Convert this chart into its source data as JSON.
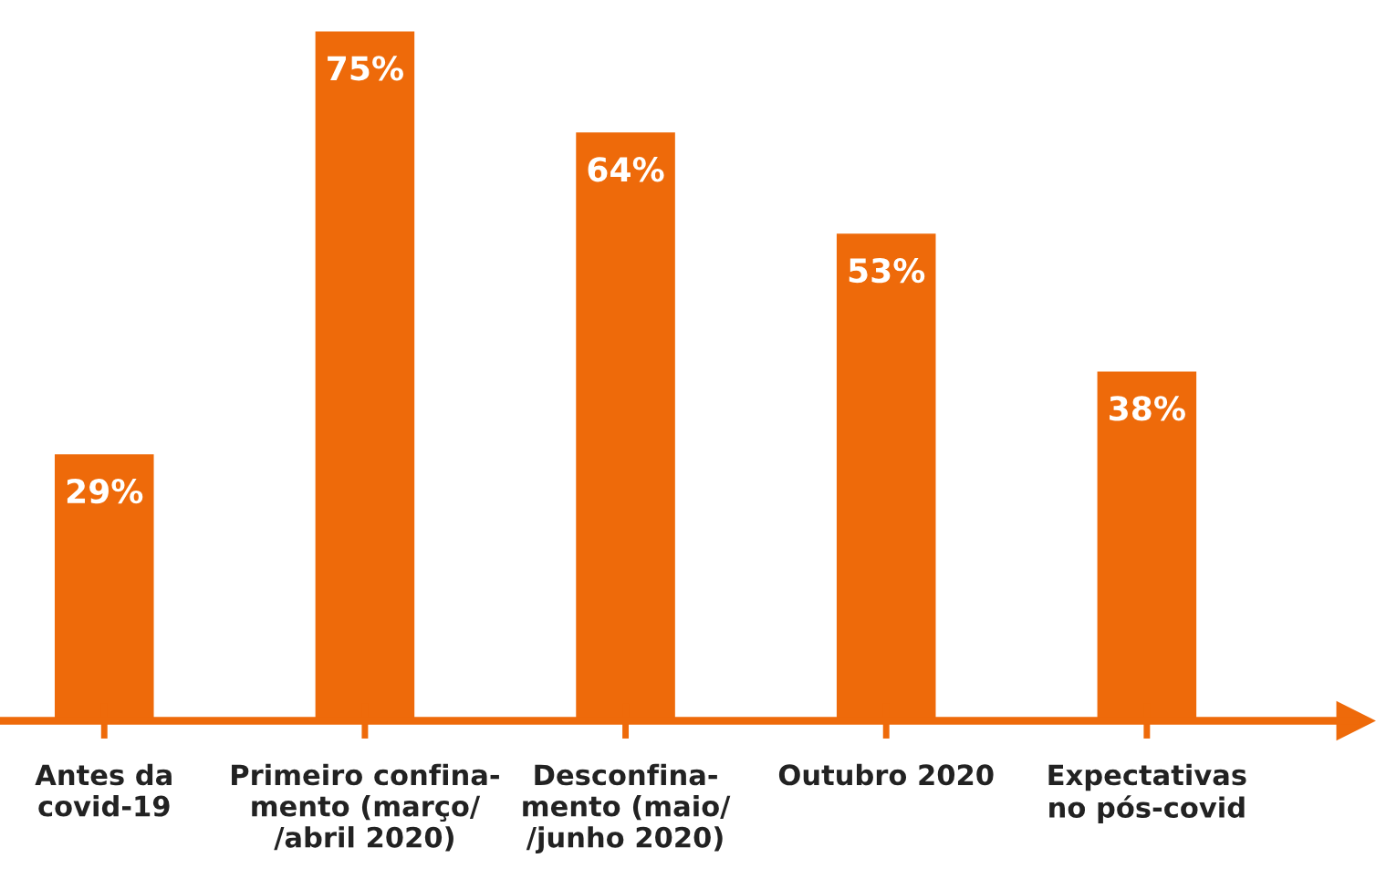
{
  "chart_data": {
    "type": "bar",
    "categories": [
      "Antes da\ncovid-19",
      "Primeiro confina-\nmento (março/\n/abril 2020)",
      "Desconfina-\nmento (maio/\n/junho 2020)",
      "Outubro 2020",
      "Expectativas\nno pós-covid"
    ],
    "values": [
      29,
      75,
      64,
      53,
      38
    ],
    "value_labels": [
      "29%",
      "75%",
      "64%",
      "53%",
      "38%"
    ],
    "color": "#ee6a0a",
    "grid": false,
    "legend": false
  }
}
